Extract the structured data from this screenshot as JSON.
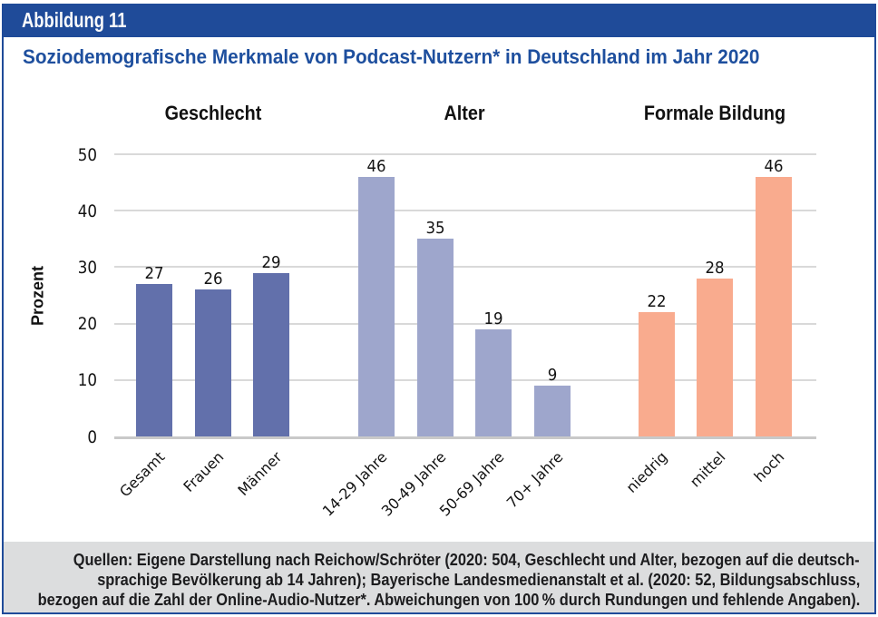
{
  "figure": {
    "header_label": "Abbildung 11",
    "title": "Soziodemografische Merkmale von Podcast-Nutzern* in Deutschland im Jahr 2020"
  },
  "chart_data": {
    "type": "bar",
    "title": "Soziodemografische Merkmale von Podcast-Nutzern* in Deutschland im Jahr 2020",
    "xlabel": "",
    "ylabel": "Prozent",
    "ylim": [
      0,
      50
    ],
    "yticks": [
      0,
      10,
      20,
      30,
      40,
      50
    ],
    "grid": true,
    "legend": "none",
    "groups": [
      {
        "label": "Geschlecht",
        "color": "#6270ab",
        "categories": [
          "Gesamt",
          "Frauen",
          "Männer"
        ],
        "values": [
          27,
          26,
          29
        ]
      },
      {
        "label": "Alter",
        "color": "#9ea6cc",
        "categories": [
          "14-29 Jahre",
          "30-49 Jahre",
          "50-69 Jahre",
          "70+ Jahre"
        ],
        "values": [
          46,
          35,
          19,
          9
        ]
      },
      {
        "label": "Formale Bildung",
        "color": "#f9ab8e",
        "categories": [
          "niedrig",
          "mittel",
          "hoch"
        ],
        "values": [
          22,
          28,
          46
        ]
      }
    ]
  },
  "footer": {
    "lines": [
      "Quellen: Eigene Darstellung nach Reichow/Schröter (2020: 504, Geschlecht und Alter, bezogen auf die deutsch-",
      "sprachige Bevölkerung ab 14 Jahren); Bayerische Landesmedienanstalt et al. (2020: 52, Bildungsabschluss,",
      "bezogen auf die Zahl der Online-Audio-Nutzer*. Abweichungen von 100 % durch Rundungen und fehlende Angaben)."
    ]
  },
  "colors": {
    "frame_border": "#1f4b99",
    "header_band_bg": "#1f4b99",
    "header_band_text": "#fbfbfb",
    "title_text": "#1e4f9e",
    "footer_bg": "#dcddde",
    "footer_text": "#1c1c1e",
    "gridline": "#d9d9d9",
    "bar_geschlecht": "#6270ab",
    "bar_alter": "#9ea6cc",
    "bar_bildung": "#f9ab8e"
  }
}
